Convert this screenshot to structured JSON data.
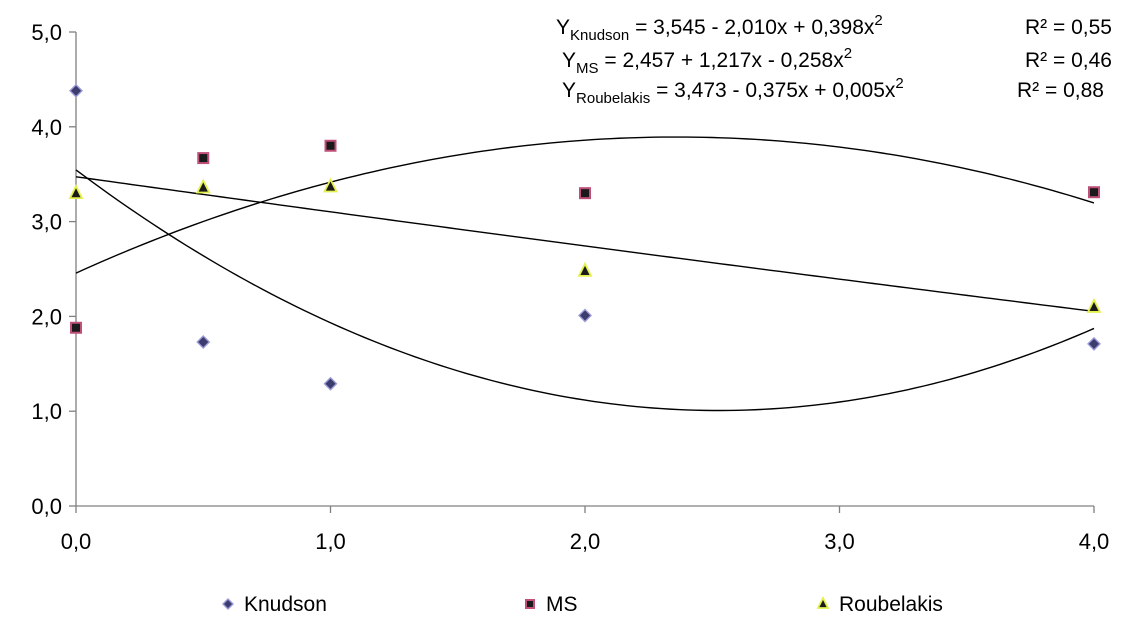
{
  "chart_data": {
    "type": "scatter",
    "xlim": [
      0,
      4
    ],
    "ylim": [
      0,
      5
    ],
    "x_ticks": [
      "0,0",
      "1,0",
      "2,0",
      "3,0",
      "4,0"
    ],
    "y_ticks": [
      "0,0",
      "1,0",
      "2,0",
      "3,0",
      "4,0",
      "5,0"
    ],
    "grid": false,
    "legend_position": "bottom",
    "series": [
      {
        "name": "Knudson",
        "marker": "diamond",
        "fill": "#3c3c6e",
        "edge": "#9a9ad6",
        "points": [
          [
            0,
            4.38
          ],
          [
            0.5,
            1.73
          ],
          [
            1.0,
            1.29
          ],
          [
            2.0,
            2.01
          ],
          [
            4.0,
            1.71
          ]
        ],
        "fit": {
          "a": 3.545,
          "b": -2.01,
          "c": 0.398
        },
        "equation": {
          "lhs": "Y",
          "sub": "Knudson",
          "rhs": " =  3,545 - 2,010x + 0,398x",
          "sup": "2",
          "r2": "R² = 0,55"
        }
      },
      {
        "name": "MS",
        "marker": "square",
        "fill": "#1a1a1a",
        "edge": "#c0507a",
        "points": [
          [
            0,
            1.88
          ],
          [
            0.5,
            3.67
          ],
          [
            1.0,
            3.8
          ],
          [
            2.0,
            3.3
          ],
          [
            4.0,
            3.31
          ]
        ],
        "fit": {
          "a": 2.457,
          "b": 1.217,
          "c": -0.258
        },
        "equation": {
          "lhs": "Y",
          "sub": "MS",
          "rhs": " = 2,457 + 1,217x - 0,258x",
          "sup": "2",
          "r2": "R² = 0,46"
        }
      },
      {
        "name": "Roubelakis",
        "marker": "triangle",
        "fill": "#1a1a1a",
        "edge": "#e4f04c",
        "points": [
          [
            0,
            3.3
          ],
          [
            0.5,
            3.36
          ],
          [
            1.0,
            3.37
          ],
          [
            2.0,
            2.48
          ],
          [
            4.0,
            2.1
          ]
        ],
        "fit": {
          "a": 3.473,
          "b": -0.375,
          "c": 0.005
        },
        "equation": {
          "lhs": "Y",
          "sub": "Roubelakis",
          "rhs": " =  3,473 - 0,375x + 0,005x",
          "sup": "2",
          "r2": "R² = 0,88"
        }
      }
    ]
  }
}
